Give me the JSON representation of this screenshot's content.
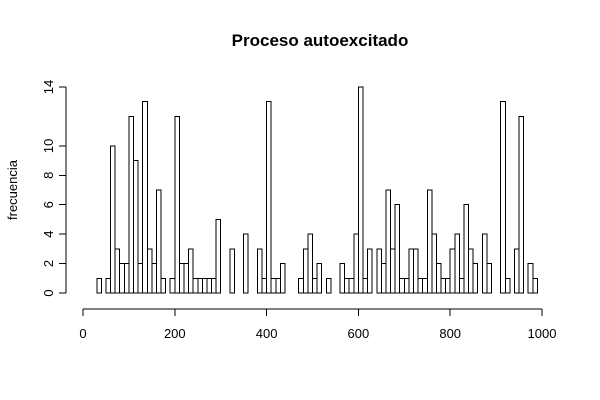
{
  "chart_data": {
    "type": "bar",
    "title": "Proceso autoexcitado",
    "xlabel": "",
    "ylabel": "frecuencia",
    "xlim": [
      0,
      1000
    ],
    "ylim": [
      0,
      14
    ],
    "x_ticks": [
      0,
      200,
      400,
      600,
      800,
      1000
    ],
    "y_ticks": [
      0,
      2,
      4,
      6,
      8,
      10,
      14
    ],
    "bin_width": 10,
    "bins": [
      {
        "x0": 30,
        "value": 1
      },
      {
        "x0": 50,
        "value": 1
      },
      {
        "x0": 60,
        "value": 10
      },
      {
        "x0": 70,
        "value": 3
      },
      {
        "x0": 80,
        "value": 2
      },
      {
        "x0": 90,
        "value": 2
      },
      {
        "x0": 100,
        "value": 12
      },
      {
        "x0": 110,
        "value": 9
      },
      {
        "x0": 120,
        "value": 2
      },
      {
        "x0": 130,
        "value": 13
      },
      {
        "x0": 140,
        "value": 3
      },
      {
        "x0": 150,
        "value": 2
      },
      {
        "x0": 160,
        "value": 7
      },
      {
        "x0": 170,
        "value": 1
      },
      {
        "x0": 190,
        "value": 1
      },
      {
        "x0": 200,
        "value": 12
      },
      {
        "x0": 210,
        "value": 2
      },
      {
        "x0": 220,
        "value": 2
      },
      {
        "x0": 230,
        "value": 3
      },
      {
        "x0": 240,
        "value": 1
      },
      {
        "x0": 250,
        "value": 1
      },
      {
        "x0": 260,
        "value": 1
      },
      {
        "x0": 270,
        "value": 1
      },
      {
        "x0": 280,
        "value": 1
      },
      {
        "x0": 290,
        "value": 5
      },
      {
        "x0": 320,
        "value": 3
      },
      {
        "x0": 350,
        "value": 4
      },
      {
        "x0": 380,
        "value": 3
      },
      {
        "x0": 390,
        "value": 1
      },
      {
        "x0": 400,
        "value": 13
      },
      {
        "x0": 410,
        "value": 1
      },
      {
        "x0": 420,
        "value": 1
      },
      {
        "x0": 430,
        "value": 2
      },
      {
        "x0": 470,
        "value": 1
      },
      {
        "x0": 480,
        "value": 3
      },
      {
        "x0": 490,
        "value": 4
      },
      {
        "x0": 500,
        "value": 1
      },
      {
        "x0": 510,
        "value": 2
      },
      {
        "x0": 530,
        "value": 1
      },
      {
        "x0": 560,
        "value": 2
      },
      {
        "x0": 570,
        "value": 1
      },
      {
        "x0": 580,
        "value": 1
      },
      {
        "x0": 590,
        "value": 4
      },
      {
        "x0": 600,
        "value": 14
      },
      {
        "x0": 610,
        "value": 1
      },
      {
        "x0": 620,
        "value": 3
      },
      {
        "x0": 640,
        "value": 3
      },
      {
        "x0": 650,
        "value": 2
      },
      {
        "x0": 660,
        "value": 7
      },
      {
        "x0": 670,
        "value": 3
      },
      {
        "x0": 680,
        "value": 6
      },
      {
        "x0": 690,
        "value": 1
      },
      {
        "x0": 700,
        "value": 1
      },
      {
        "x0": 710,
        "value": 3
      },
      {
        "x0": 720,
        "value": 3
      },
      {
        "x0": 730,
        "value": 1
      },
      {
        "x0": 740,
        "value": 1
      },
      {
        "x0": 750,
        "value": 7
      },
      {
        "x0": 760,
        "value": 4
      },
      {
        "x0": 770,
        "value": 2
      },
      {
        "x0": 780,
        "value": 1
      },
      {
        "x0": 790,
        "value": 1
      },
      {
        "x0": 800,
        "value": 3
      },
      {
        "x0": 810,
        "value": 4
      },
      {
        "x0": 820,
        "value": 1
      },
      {
        "x0": 830,
        "value": 6
      },
      {
        "x0": 840,
        "value": 3
      },
      {
        "x0": 850,
        "value": 2
      },
      {
        "x0": 870,
        "value": 4
      },
      {
        "x0": 880,
        "value": 2
      },
      {
        "x0": 910,
        "value": 13
      },
      {
        "x0": 920,
        "value": 1
      },
      {
        "x0": 940,
        "value": 3
      },
      {
        "x0": 950,
        "value": 12
      },
      {
        "x0": 970,
        "value": 2
      },
      {
        "x0": 980,
        "value": 1
      }
    ]
  }
}
